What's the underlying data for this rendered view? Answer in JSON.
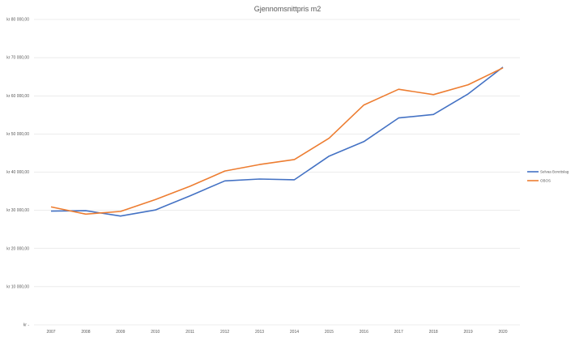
{
  "chart_data": {
    "type": "line",
    "title": "Gjennomsnittpris m2",
    "xlabel": "",
    "ylabel": "",
    "categories": [
      "2007",
      "2008",
      "2009",
      "2010",
      "2011",
      "2012",
      "2013",
      "2014",
      "2015",
      "2016",
      "2017",
      "2018",
      "2019",
      "2020"
    ],
    "ylim": [
      0,
      80000
    ],
    "yticks": [
      0,
      10000,
      20000,
      30000,
      40000,
      50000,
      60000,
      70000,
      80000
    ],
    "ytick_labels": [
      "kr -",
      "kr 10 000,00",
      "kr 20 000,00",
      "kr 30 000,00",
      "kr 40 000,00",
      "kr 50 000,00",
      "kr 60 000,00",
      "kr 70 000,00",
      "kr 80 000,00"
    ],
    "grid": true,
    "legend_position": "right",
    "series": [
      {
        "name": "Selvaa Borettslag",
        "color": "#4472c4",
        "values": [
          29800,
          29900,
          28500,
          30100,
          33800,
          37700,
          38200,
          38000,
          44200,
          48000,
          54200,
          55100,
          60500,
          67500
        ]
      },
      {
        "name": "OBOS",
        "color": "#ed7d31",
        "values": [
          30900,
          29000,
          29700,
          32800,
          36300,
          40300,
          42000,
          43300,
          48900,
          57600,
          61700,
          60300,
          62900,
          67300
        ]
      }
    ]
  }
}
